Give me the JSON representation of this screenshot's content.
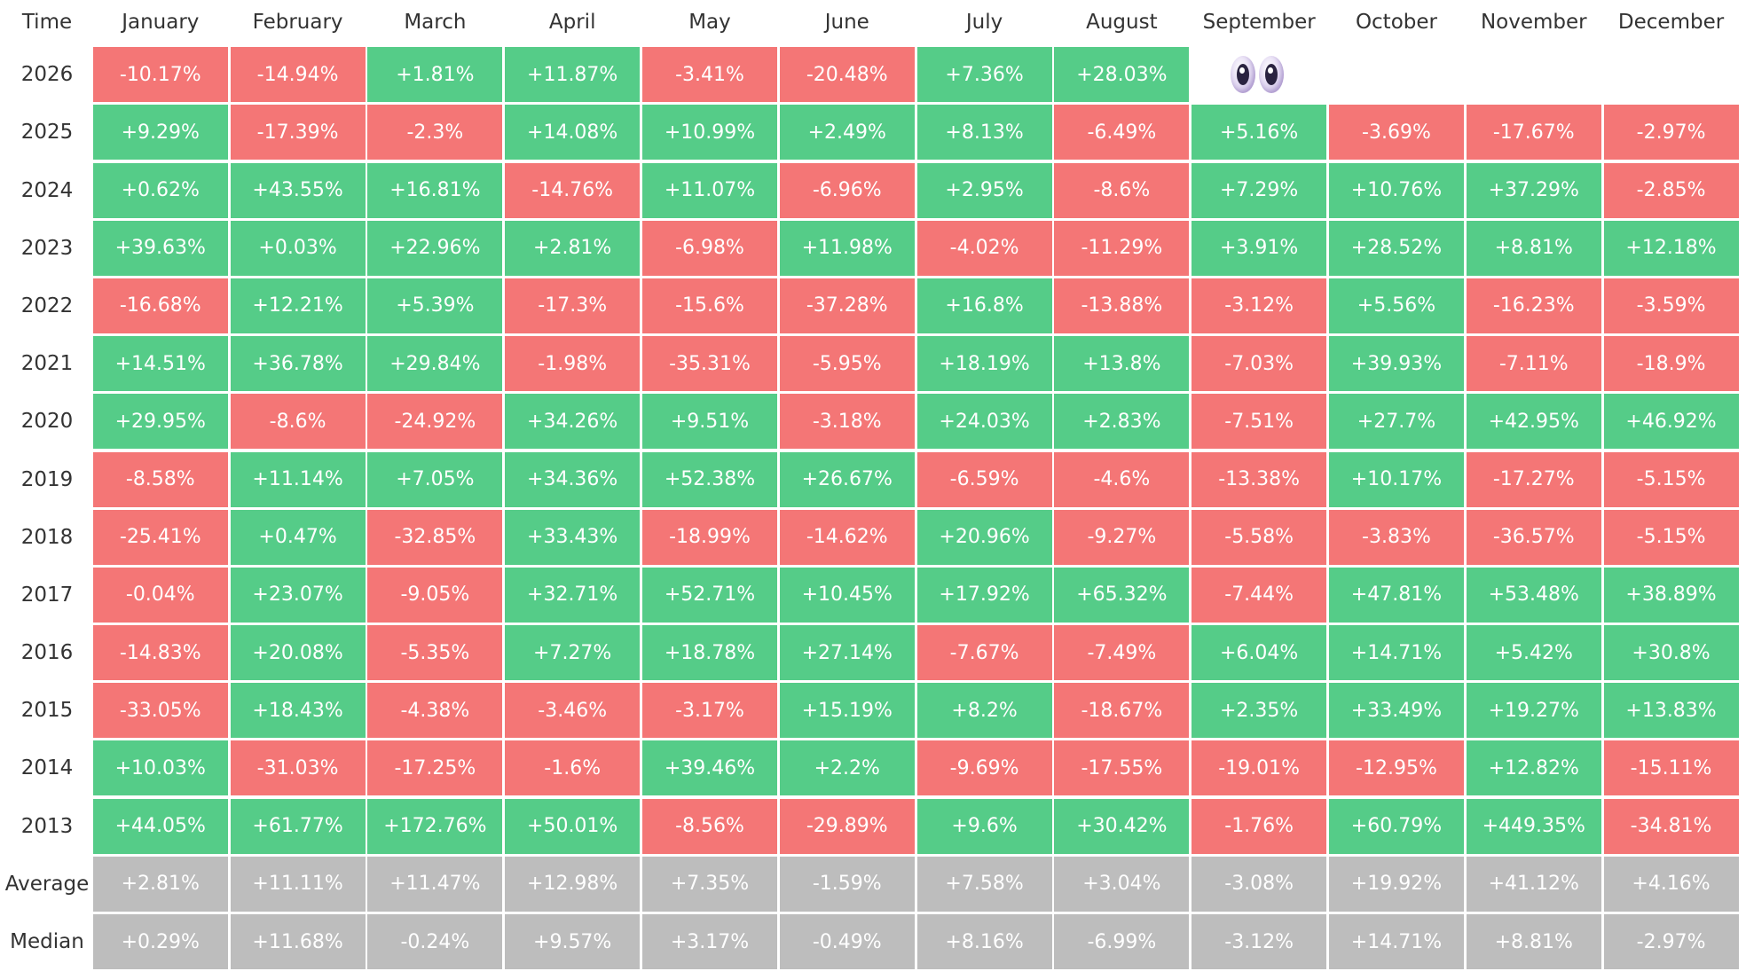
{
  "chart_data": {
    "type": "heatmap",
    "corner_label": "Time",
    "columns": [
      "January",
      "February",
      "March",
      "April",
      "May",
      "June",
      "July",
      "August",
      "September",
      "October",
      "November",
      "December"
    ],
    "rows": [
      {
        "label": "2026",
        "values": [
          "-10.17%",
          "-14.94%",
          "+1.81%",
          "+11.87%",
          "-3.41%",
          "-20.48%",
          "+7.36%",
          "+28.03%",
          null,
          null,
          null,
          null
        ]
      },
      {
        "label": "2025",
        "values": [
          "+9.29%",
          "-17.39%",
          "-2.3%",
          "+14.08%",
          "+10.99%",
          "+2.49%",
          "+8.13%",
          "-6.49%",
          "+5.16%",
          "-3.69%",
          "-17.67%",
          "-2.97%"
        ]
      },
      {
        "label": "2024",
        "values": [
          "+0.62%",
          "+43.55%",
          "+16.81%",
          "-14.76%",
          "+11.07%",
          "-6.96%",
          "+2.95%",
          "-8.6%",
          "+7.29%",
          "+10.76%",
          "+37.29%",
          "-2.85%"
        ]
      },
      {
        "label": "2023",
        "values": [
          "+39.63%",
          "+0.03%",
          "+22.96%",
          "+2.81%",
          "-6.98%",
          "+11.98%",
          "-4.02%",
          "-11.29%",
          "+3.91%",
          "+28.52%",
          "+8.81%",
          "+12.18%"
        ]
      },
      {
        "label": "2022",
        "values": [
          "-16.68%",
          "+12.21%",
          "+5.39%",
          "-17.3%",
          "-15.6%",
          "-37.28%",
          "+16.8%",
          "-13.88%",
          "-3.12%",
          "+5.56%",
          "-16.23%",
          "-3.59%"
        ]
      },
      {
        "label": "2021",
        "values": [
          "+14.51%",
          "+36.78%",
          "+29.84%",
          "-1.98%",
          "-35.31%",
          "-5.95%",
          "+18.19%",
          "+13.8%",
          "-7.03%",
          "+39.93%",
          "-7.11%",
          "-18.9%"
        ]
      },
      {
        "label": "2020",
        "values": [
          "+29.95%",
          "-8.6%",
          "-24.92%",
          "+34.26%",
          "+9.51%",
          "-3.18%",
          "+24.03%",
          "+2.83%",
          "-7.51%",
          "+27.7%",
          "+42.95%",
          "+46.92%"
        ]
      },
      {
        "label": "2019",
        "values": [
          "-8.58%",
          "+11.14%",
          "+7.05%",
          "+34.36%",
          "+52.38%",
          "+26.67%",
          "-6.59%",
          "-4.6%",
          "-13.38%",
          "+10.17%",
          "-17.27%",
          "-5.15%"
        ]
      },
      {
        "label": "2018",
        "values": [
          "-25.41%",
          "+0.47%",
          "-32.85%",
          "+33.43%",
          "-18.99%",
          "-14.62%",
          "+20.96%",
          "-9.27%",
          "-5.58%",
          "-3.83%",
          "-36.57%",
          "-5.15%"
        ]
      },
      {
        "label": "2017",
        "values": [
          "-0.04%",
          "+23.07%",
          "-9.05%",
          "+32.71%",
          "+52.71%",
          "+10.45%",
          "+17.92%",
          "+65.32%",
          "-7.44%",
          "+47.81%",
          "+53.48%",
          "+38.89%"
        ]
      },
      {
        "label": "2016",
        "values": [
          "-14.83%",
          "+20.08%",
          "-5.35%",
          "+7.27%",
          "+18.78%",
          "+27.14%",
          "-7.67%",
          "-7.49%",
          "+6.04%",
          "+14.71%",
          "+5.42%",
          "+30.8%"
        ]
      },
      {
        "label": "2015",
        "values": [
          "-33.05%",
          "+18.43%",
          "-4.38%",
          "-3.46%",
          "-3.17%",
          "+15.19%",
          "+8.2%",
          "-18.67%",
          "+2.35%",
          "+33.49%",
          "+19.27%",
          "+13.83%"
        ]
      },
      {
        "label": "2014",
        "values": [
          "+10.03%",
          "-31.03%",
          "-17.25%",
          "-1.6%",
          "+39.46%",
          "+2.2%",
          "-9.69%",
          "-17.55%",
          "-19.01%",
          "-12.95%",
          "+12.82%",
          "-15.11%"
        ]
      },
      {
        "label": "2013",
        "values": [
          "+44.05%",
          "+61.77%",
          "+172.76%",
          "+50.01%",
          "-8.56%",
          "-29.89%",
          "+9.6%",
          "+30.42%",
          "-1.76%",
          "+60.79%",
          "+449.35%",
          "-34.81%"
        ]
      },
      {
        "label": "Average",
        "stat": true,
        "values": [
          "+2.81%",
          "+11.11%",
          "+11.47%",
          "+12.98%",
          "+7.35%",
          "-1.59%",
          "+7.58%",
          "+3.04%",
          "-3.08%",
          "+19.92%",
          "+41.12%",
          "+4.16%"
        ]
      },
      {
        "label": "Median",
        "stat": true,
        "values": [
          "+0.29%",
          "+11.68%",
          "-0.24%",
          "+9.57%",
          "+3.17%",
          "-0.49%",
          "+8.16%",
          "-6.99%",
          "-3.12%",
          "+14.71%",
          "+8.81%",
          "-2.97%"
        ]
      }
    ],
    "colors": {
      "positive": "#55cc88",
      "negative": "#f47676",
      "stat": "#bdbdbd",
      "header_text": "#333333",
      "cell_text": "#ffffff"
    },
    "icon": "eyes-icon"
  }
}
